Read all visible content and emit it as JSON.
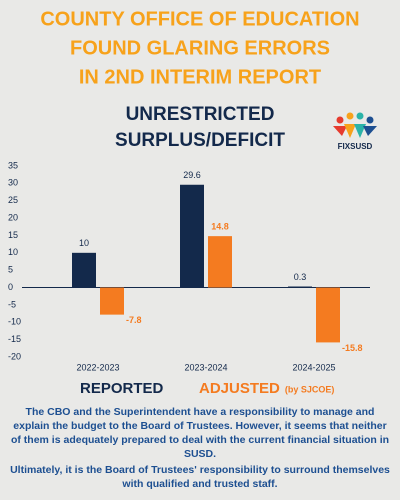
{
  "chart_data": {
    "type": "bar",
    "title_lines": [
      "COUNTY OFFICE OF EDUCATION",
      "FOUND GLARING ERRORS",
      "IN 2ND INTERIM REPORT"
    ],
    "subtitle_lines": [
      "UNRESTRICTED",
      "SURPLUS/DEFICIT"
    ],
    "logo": "FIXSUSD",
    "categories": [
      "2022-2023",
      "2023-2024",
      "2024-2025"
    ],
    "series": [
      {
        "name": "REPORTED",
        "color": "#13294b",
        "values": [
          10,
          29.6,
          0.3
        ]
      },
      {
        "name": "ADJUSTED",
        "color": "#f47b20",
        "values": [
          -7.8,
          14.8,
          -15.8
        ]
      }
    ],
    "legend_note": "(by SJCOE)",
    "ylim": [
      -20,
      35
    ],
    "yticks": [
      -20,
      -15,
      -10,
      -5,
      0,
      5,
      10,
      15,
      20,
      25,
      30,
      35
    ],
    "notes": [
      "The CBO and the Superintendent have a responsibility to manage and explain the budget to the Board of Trustees. However, it seems that neither of them is adequately prepared to deal with the current financial situation in SUSD.",
      "Ultimately, it is the Board of Trustees' responsibility to surround themselves with qualified and trusted staff."
    ]
  }
}
